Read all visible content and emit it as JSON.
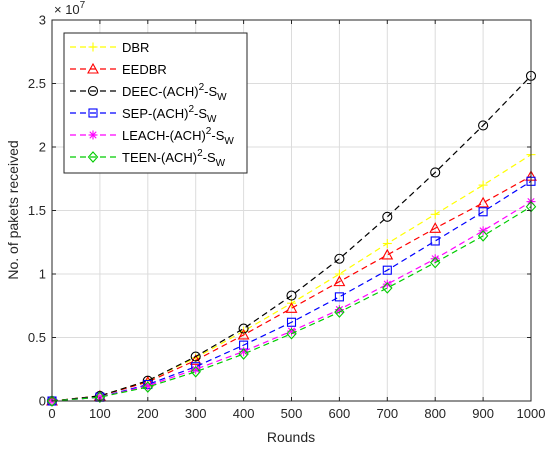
{
  "chart_data": {
    "type": "line",
    "xlabel": "Rounds",
    "ylabel": "No. of pakets received",
    "xlim": [
      0,
      1000
    ],
    "ylim": [
      0,
      3
    ],
    "x_ticks": [
      "0",
      "100",
      "200",
      "300",
      "400",
      "500",
      "600",
      "700",
      "800",
      "900",
      "1000"
    ],
    "y_ticks": [
      "0",
      "0.5",
      "1",
      "1.5",
      "2",
      "2.5",
      "3"
    ],
    "y_multiplier": {
      "base": "× 10",
      "exponent": "7"
    },
    "grid": true,
    "legend_position": "top-left",
    "x": [
      0,
      100,
      200,
      300,
      400,
      500,
      600,
      700,
      800,
      900,
      1000
    ],
    "series": [
      {
        "name": "DBR",
        "legend": {
          "base": "DBR",
          "sup": "",
          "sub": ""
        },
        "color": "#ffff00",
        "marker": "plus",
        "values": [
          0,
          0.04,
          0.16,
          0.34,
          0.55,
          0.77,
          1.0,
          1.24,
          1.47,
          1.7,
          1.94
        ]
      },
      {
        "name": "EEDBR",
        "legend": {
          "base": "EEDBR",
          "sup": "",
          "sub": ""
        },
        "color": "#ff0000",
        "marker": "triangle",
        "values": [
          0,
          0.04,
          0.15,
          0.32,
          0.52,
          0.73,
          0.94,
          1.15,
          1.36,
          1.56,
          1.77
        ]
      },
      {
        "name": "DEEC-(ACH)2-SW",
        "legend": {
          "base": "DEEC-(ACH)",
          "sup": "2",
          "sub": "-S",
          "sub2": "W"
        },
        "color": "#000000",
        "marker": "circle",
        "values": [
          0,
          0.04,
          0.16,
          0.35,
          0.57,
          0.83,
          1.12,
          1.45,
          1.8,
          2.17,
          2.56
        ]
      },
      {
        "name": "SEP-(ACH)2-SW",
        "legend": {
          "base": "SEP-(ACH)",
          "sup": "2",
          "sub": "-S",
          "sub2": "W"
        },
        "color": "#0000ff",
        "marker": "square",
        "values": [
          0,
          0.03,
          0.13,
          0.27,
          0.44,
          0.62,
          0.82,
          1.03,
          1.26,
          1.49,
          1.73
        ]
      },
      {
        "name": "LEACH-(ACH)2-SW",
        "legend": {
          "base": "LEACH-(ACH)",
          "sup": "2",
          "sub": "-S",
          "sub2": "W"
        },
        "color": "#ff00ff",
        "marker": "asterisk",
        "values": [
          0,
          0.03,
          0.12,
          0.25,
          0.39,
          0.55,
          0.72,
          0.92,
          1.12,
          1.34,
          1.57
        ]
      },
      {
        "name": "TEEN-(ACH)2-SW",
        "legend": {
          "base": "TEEN-(ACH)",
          "sup": "2",
          "sub": "-S",
          "sub2": "W"
        },
        "color": "#00cc00",
        "marker": "diamond",
        "values": [
          0,
          0.03,
          0.11,
          0.23,
          0.37,
          0.53,
          0.7,
          0.89,
          1.09,
          1.3,
          1.53
        ]
      }
    ]
  }
}
